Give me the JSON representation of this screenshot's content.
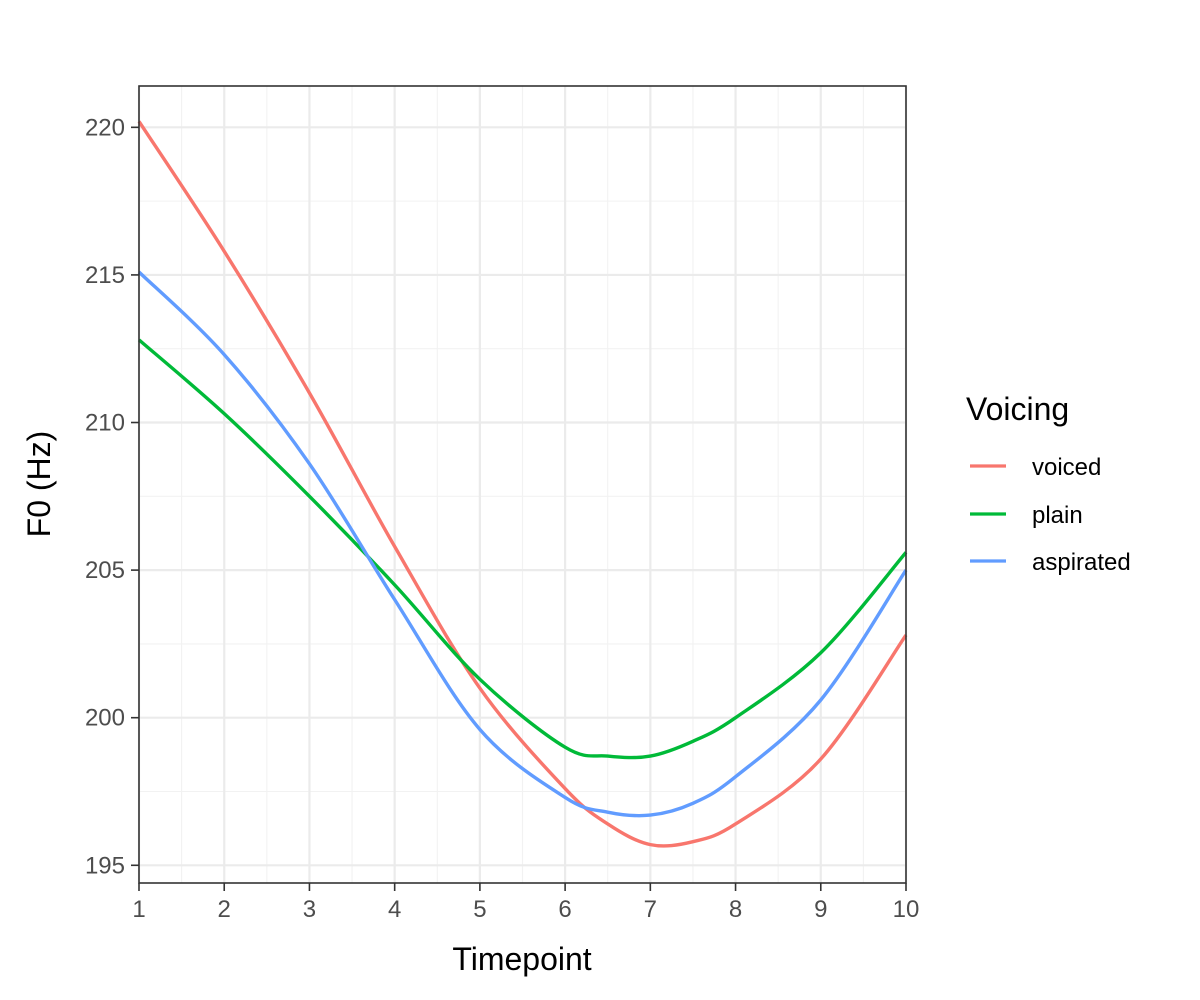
{
  "chart_data": {
    "type": "line",
    "title": "",
    "xlabel": "Timepoint",
    "ylabel": "F0 (Hz)",
    "xlim": [
      1,
      10
    ],
    "ylim": [
      194.4,
      221.4
    ],
    "x_ticks": [
      1,
      2,
      3,
      4,
      5,
      6,
      7,
      8,
      9,
      10
    ],
    "y_ticks": [
      195,
      200,
      205,
      210,
      215,
      220
    ],
    "grid": true,
    "legend": {
      "title": "Voicing",
      "position": "right"
    },
    "x": [
      1,
      2,
      3,
      4,
      5,
      6,
      6.5,
      7,
      7.5,
      8,
      9,
      10
    ],
    "series": [
      {
        "name": "voiced",
        "color": "#F8766D",
        "values": [
          220.2,
          215.8,
          211.0,
          205.8,
          201.0,
          197.6,
          196.4,
          195.7,
          195.8,
          196.4,
          198.6,
          202.8
        ]
      },
      {
        "name": "plain",
        "color": "#00BA38",
        "values": [
          212.8,
          210.3,
          207.5,
          204.5,
          201.3,
          199.0,
          198.7,
          198.7,
          199.2,
          200.0,
          202.2,
          205.6
        ]
      },
      {
        "name": "aspirated",
        "color": "#619CFF",
        "values": [
          215.1,
          212.3,
          208.6,
          204.0,
          199.6,
          197.3,
          196.8,
          196.7,
          197.1,
          198.0,
          200.6,
          205.0
        ]
      }
    ]
  }
}
